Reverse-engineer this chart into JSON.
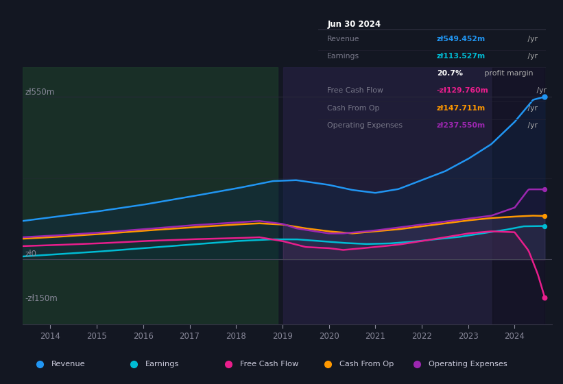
{
  "bg_color": "#131722",
  "plot_bg_color": "#131722",
  "title": "Jun 30 2024",
  "ylim": [
    -220,
    650
  ],
  "xlim": [
    2013.4,
    2024.8
  ],
  "y_ticks": [
    0,
    550
  ],
  "y_tick_labels": [
    "zł0",
    "zł550m"
  ],
  "y_neg_label": "-zł150m",
  "x_ticks": [
    2014,
    2015,
    2016,
    2017,
    2018,
    2019,
    2020,
    2021,
    2022,
    2023,
    2024
  ],
  "revenue_color": "#2196f3",
  "earnings_color": "#00bcd4",
  "fcf_color": "#e91e8c",
  "cfo_color": "#ff9800",
  "opex_color": "#9c27b0",
  "legend": [
    {
      "label": "Revenue",
      "color": "#2196f3"
    },
    {
      "label": "Earnings",
      "color": "#00bcd4"
    },
    {
      "label": "Free Cash Flow",
      "color": "#e91e8c"
    },
    {
      "label": "Cash From Op",
      "color": "#ff9800"
    },
    {
      "label": "Operating Expenses",
      "color": "#9c27b0"
    }
  ],
  "info_box": {
    "bg": "#0a0a0a",
    "border": "#333333",
    "title": "Jun 30 2024",
    "title_color": "#ffffff",
    "rows": [
      {
        "label": "Revenue",
        "value": "zł549.452m",
        "unit": " /yr",
        "value_color": "#2196f3"
      },
      {
        "label": "Earnings",
        "value": "zł113.527m",
        "unit": " /yr",
        "value_color": "#00bcd4"
      },
      {
        "label": "",
        "value": "20.7%",
        "unit": " profit margin",
        "value_color": "#ffffff",
        "unit_color": "#aaaaaa"
      },
      {
        "label": "Free Cash Flow",
        "value": "-zł129.760m",
        "unit": " /yr",
        "value_color": "#e91e8c"
      },
      {
        "label": "Cash From Op",
        "value": "zł147.711m",
        "unit": " /yr",
        "value_color": "#ff9800"
      },
      {
        "label": "Operating Expenses",
        "value": "zł237.550m",
        "unit": " /yr",
        "value_color": "#9c27b0"
      }
    ]
  }
}
